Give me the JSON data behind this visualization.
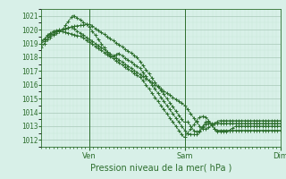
{
  "bg_color": "#d8f0e8",
  "grid_color_minor": "#c8e8d8",
  "grid_color_major": "#a8c8b8",
  "line_color": "#2d6e2d",
  "xlabel": "Pression niveau de la mer( hPa )",
  "ylim": [
    1011.5,
    1021.5
  ],
  "yticks": [
    1012,
    1013,
    1014,
    1015,
    1016,
    1017,
    1018,
    1019,
    1020,
    1021
  ],
  "xtick_labels_pos": [
    48,
    144,
    240
  ],
  "xtick_labels_txt": [
    "Ven",
    "Sam",
    "Dim"
  ],
  "total_points": 241,
  "series": [
    [
      1019.0,
      1019.1,
      1019.2,
      1019.3,
      1019.4,
      1019.5,
      1019.6,
      1019.65,
      1019.7,
      1019.75,
      1019.8,
      1019.85,
      1019.9,
      1019.92,
      1019.94,
      1019.95,
      1019.96,
      1019.97,
      1019.98,
      1019.99,
      1020.0,
      1020.02,
      1020.04,
      1020.06,
      1020.08,
      1020.1,
      1020.12,
      1020.14,
      1020.16,
      1020.18,
      1020.2,
      1020.22,
      1020.24,
      1020.25,
      1020.26,
      1020.27,
      1020.28,
      1020.29,
      1020.3,
      1020.31,
      1020.32,
      1020.33,
      1020.34,
      1020.35,
      1020.36,
      1020.37,
      1020.38,
      1020.39,
      1020.4,
      1020.35,
      1020.3,
      1020.25,
      1020.2,
      1020.15,
      1020.1,
      1020.05,
      1020.0,
      1019.95,
      1019.9,
      1019.85,
      1019.8,
      1019.75,
      1019.7,
      1019.65,
      1019.6,
      1019.55,
      1019.5,
      1019.45,
      1019.4,
      1019.35,
      1019.3,
      1019.25,
      1019.2,
      1019.15,
      1019.1,
      1019.05,
      1019.0,
      1018.95,
      1018.9,
      1018.85,
      1018.8,
      1018.75,
      1018.7,
      1018.65,
      1018.6,
      1018.55,
      1018.5,
      1018.45,
      1018.4,
      1018.35,
      1018.3,
      1018.25,
      1018.2,
      1018.15,
      1018.1,
      1018.05,
      1018.0,
      1017.9,
      1017.8,
      1017.7,
      1017.6,
      1017.5,
      1017.4,
      1017.3,
      1017.2,
      1017.1,
      1017.0,
      1016.9,
      1016.8,
      1016.7,
      1016.6,
      1016.5,
      1016.4,
      1016.3,
      1016.2,
      1016.1,
      1016.0,
      1015.9,
      1015.8,
      1015.7,
      1015.6,
      1015.5,
      1015.4,
      1015.3,
      1015.2,
      1015.1,
      1015.0,
      1014.9,
      1014.8,
      1014.7,
      1014.6,
      1014.5,
      1014.4,
      1014.3,
      1014.2,
      1014.1,
      1014.0,
      1013.9,
      1013.8,
      1013.7,
      1013.6,
      1013.5,
      1013.4,
      1013.3,
      1013.3,
      1013.3,
      1013.3,
      1013.3,
      1013.2,
      1013.1,
      1013.0,
      1012.9,
      1012.8,
      1012.7,
      1012.6,
      1012.6,
      1012.6,
      1012.6,
      1012.6,
      1012.7,
      1012.8,
      1012.9,
      1013.0,
      1013.1,
      1013.2,
      1013.3,
      1013.3,
      1013.3,
      1013.3,
      1013.3,
      1013.2,
      1013.1,
      1013.0,
      1012.9,
      1012.8,
      1012.7,
      1012.6,
      1012.6,
      1012.6,
      1012.6,
      1012.6,
      1012.6,
      1012.6,
      1012.6,
      1012.6,
      1012.6,
      1012.6,
      1012.6,
      1012.65,
      1012.7,
      1012.75,
      1012.8,
      1012.85,
      1012.9,
      1012.95,
      1013.0,
      1013.0,
      1013.0,
      1013.0,
      1013.0,
      1013.0,
      1013.0,
      1013.0,
      1013.0,
      1013.0,
      1013.0,
      1013.0,
      1013.0,
      1013.0,
      1013.0,
      1013.0,
      1013.0,
      1013.0,
      1013.0,
      1013.0,
      1013.0,
      1013.0,
      1013.0,
      1013.0,
      1013.0,
      1013.0,
      1013.0,
      1013.0,
      1013.0,
      1013.0,
      1013.0,
      1013.0,
      1013.0,
      1013.0,
      1013.0,
      1013.0,
      1013.0,
      1013.0,
      1013.0,
      1013.0,
      1013.0,
      1013.0,
      1013.0,
      1013.0,
      1013.0,
      1013.0
    ],
    [
      1018.7,
      1018.8,
      1018.9,
      1019.0,
      1019.1,
      1019.2,
      1019.3,
      1019.4,
      1019.5,
      1019.55,
      1019.6,
      1019.65,
      1019.7,
      1019.75,
      1019.8,
      1019.85,
      1019.9,
      1019.92,
      1019.94,
      1019.96,
      1019.98,
      1020.0,
      1020.1,
      1020.2,
      1020.3,
      1020.4,
      1020.5,
      1020.6,
      1020.7,
      1020.8,
      1020.9,
      1021.0,
      1021.05,
      1021.0,
      1020.95,
      1020.9,
      1020.85,
      1020.8,
      1020.75,
      1020.7,
      1020.65,
      1020.6,
      1020.55,
      1020.5,
      1020.45,
      1020.4,
      1020.35,
      1020.3,
      1020.2,
      1020.1,
      1020.0,
      1019.9,
      1019.8,
      1019.7,
      1019.6,
      1019.5,
      1019.4,
      1019.3,
      1019.2,
      1019.1,
      1019.0,
      1018.9,
      1018.8,
      1018.7,
      1018.6,
      1018.5,
      1018.4,
      1018.3,
      1018.2,
      1018.1,
      1018.05,
      1018.0,
      1018.05,
      1018.1,
      1018.15,
      1018.2,
      1018.25,
      1018.3,
      1018.25,
      1018.2,
      1018.15,
      1018.1,
      1018.05,
      1018.0,
      1017.95,
      1017.9,
      1017.85,
      1017.8,
      1017.75,
      1017.7,
      1017.65,
      1017.6,
      1017.55,
      1017.5,
      1017.45,
      1017.4,
      1017.35,
      1017.3,
      1017.25,
      1017.2,
      1017.1,
      1017.0,
      1016.9,
      1016.8,
      1016.7,
      1016.6,
      1016.5,
      1016.4,
      1016.3,
      1016.2,
      1016.1,
      1016.0,
      1015.9,
      1015.8,
      1015.7,
      1015.6,
      1015.5,
      1015.4,
      1015.3,
      1015.2,
      1015.1,
      1015.0,
      1014.9,
      1014.8,
      1014.7,
      1014.6,
      1014.5,
      1014.4,
      1014.3,
      1014.2,
      1014.1,
      1014.0,
      1013.9,
      1013.8,
      1013.7,
      1013.6,
      1013.5,
      1013.4,
      1013.3,
      1013.2,
      1013.1,
      1013.0,
      1012.9,
      1012.8,
      1012.7,
      1012.6,
      1012.5,
      1012.45,
      1012.4,
      1012.4,
      1012.4,
      1012.4,
      1012.4,
      1012.4,
      1012.4,
      1012.4,
      1012.4,
      1012.4,
      1012.5,
      1012.6,
      1012.7,
      1012.8,
      1012.9,
      1013.0,
      1013.1,
      1013.15,
      1013.2,
      1013.2,
      1013.2,
      1013.2,
      1013.2,
      1013.2,
      1013.2,
      1013.2,
      1013.2,
      1013.2,
      1013.2,
      1013.2,
      1013.2,
      1013.2,
      1013.2,
      1013.2,
      1013.2,
      1013.2,
      1013.2,
      1013.2,
      1013.2,
      1013.2,
      1013.2,
      1013.2,
      1013.2,
      1013.2,
      1013.2,
      1013.2,
      1013.2,
      1013.2,
      1013.2,
      1013.2,
      1013.2,
      1013.2,
      1013.2,
      1013.2,
      1013.2,
      1013.2,
      1013.2,
      1013.2,
      1013.2,
      1013.2,
      1013.2,
      1013.2,
      1013.2,
      1013.2,
      1013.2,
      1013.2,
      1013.2,
      1013.2,
      1013.2,
      1013.2,
      1013.2,
      1013.2,
      1013.2,
      1013.2,
      1013.2,
      1013.2,
      1013.2,
      1013.2,
      1013.2,
      1013.2,
      1013.2,
      1013.2,
      1013.2,
      1013.2,
      1013.2,
      1013.2,
      1013.2,
      1013.2,
      1013.2,
      1013.2,
      1013.2,
      1013.2,
      1013.2
    ],
    [
      1019.0,
      1019.05,
      1019.1,
      1019.15,
      1019.2,
      1019.25,
      1019.3,
      1019.35,
      1019.4,
      1019.45,
      1019.5,
      1019.55,
      1019.6,
      1019.65,
      1019.7,
      1019.75,
      1019.8,
      1019.85,
      1019.9,
      1019.95,
      1020.0,
      1020.02,
      1020.04,
      1020.06,
      1020.08,
      1020.1,
      1020.12,
      1020.14,
      1020.16,
      1020.18,
      1020.2,
      1020.15,
      1020.1,
      1020.05,
      1020.0,
      1019.95,
      1019.9,
      1019.85,
      1019.8,
      1019.75,
      1019.7,
      1019.65,
      1019.6,
      1019.55,
      1019.5,
      1019.45,
      1019.4,
      1019.35,
      1019.3,
      1019.25,
      1019.2,
      1019.15,
      1019.1,
      1019.05,
      1019.0,
      1018.95,
      1018.9,
      1018.85,
      1018.8,
      1018.75,
      1018.7,
      1018.65,
      1018.6,
      1018.55,
      1018.5,
      1018.45,
      1018.4,
      1018.35,
      1018.3,
      1018.25,
      1018.2,
      1018.15,
      1018.1,
      1018.05,
      1018.0,
      1017.95,
      1017.9,
      1017.85,
      1017.8,
      1017.75,
      1017.7,
      1017.65,
      1017.6,
      1017.55,
      1017.5,
      1017.45,
      1017.4,
      1017.35,
      1017.3,
      1017.25,
      1017.2,
      1017.15,
      1017.1,
      1017.05,
      1017.0,
      1016.95,
      1016.9,
      1016.85,
      1016.8,
      1016.75,
      1016.7,
      1016.65,
      1016.6,
      1016.55,
      1016.5,
      1016.45,
      1016.4,
      1016.35,
      1016.3,
      1016.25,
      1016.2,
      1016.15,
      1016.1,
      1016.05,
      1016.0,
      1015.95,
      1015.9,
      1015.85,
      1015.8,
      1015.75,
      1015.7,
      1015.65,
      1015.6,
      1015.55,
      1015.5,
      1015.45,
      1015.4,
      1015.35,
      1015.3,
      1015.25,
      1015.2,
      1015.15,
      1015.1,
      1015.05,
      1015.0,
      1014.95,
      1014.9,
      1014.85,
      1014.8,
      1014.75,
      1014.7,
      1014.65,
      1014.6,
      1014.55,
      1014.5,
      1014.4,
      1014.3,
      1014.2,
      1014.1,
      1014.0,
      1013.9,
      1013.8,
      1013.7,
      1013.6,
      1013.5,
      1013.4,
      1013.3,
      1013.2,
      1013.1,
      1013.0,
      1012.9,
      1012.85,
      1012.8,
      1012.8,
      1012.8,
      1012.8,
      1012.8,
      1012.85,
      1012.9,
      1012.95,
      1013.0,
      1013.05,
      1013.1,
      1013.15,
      1013.2,
      1013.25,
      1013.3,
      1013.35,
      1013.4,
      1013.4,
      1013.4,
      1013.4,
      1013.4,
      1013.4,
      1013.4,
      1013.4,
      1013.4,
      1013.4,
      1013.4,
      1013.4,
      1013.4,
      1013.4,
      1013.4,
      1013.4,
      1013.4,
      1013.4,
      1013.4,
      1013.4,
      1013.4,
      1013.4,
      1013.4,
      1013.4,
      1013.4,
      1013.4,
      1013.4,
      1013.4,
      1013.4,
      1013.4,
      1013.4,
      1013.4,
      1013.4,
      1013.4,
      1013.4,
      1013.4,
      1013.4,
      1013.4,
      1013.4,
      1013.4,
      1013.4,
      1013.4,
      1013.4,
      1013.4,
      1013.4,
      1013.4,
      1013.4,
      1013.4,
      1013.4,
      1013.4,
      1013.4,
      1013.4,
      1013.4,
      1013.4,
      1013.4,
      1013.4,
      1013.4,
      1013.4,
      1013.4,
      1013.4,
      1013.4,
      1013.4,
      1013.4
    ],
    [
      1019.2,
      1019.25,
      1019.3,
      1019.35,
      1019.4,
      1019.45,
      1019.5,
      1019.55,
      1019.6,
      1019.65,
      1019.7,
      1019.75,
      1019.8,
      1019.82,
      1019.84,
      1019.86,
      1019.88,
      1019.9,
      1019.9,
      1019.9,
      1019.9,
      1019.88,
      1019.86,
      1019.84,
      1019.82,
      1019.8,
      1019.78,
      1019.76,
      1019.74,
      1019.72,
      1019.7,
      1019.68,
      1019.66,
      1019.64,
      1019.62,
      1019.6,
      1019.58,
      1019.56,
      1019.54,
      1019.52,
      1019.5,
      1019.45,
      1019.4,
      1019.35,
      1019.3,
      1019.25,
      1019.2,
      1019.15,
      1019.1,
      1019.05,
      1019.0,
      1018.95,
      1018.9,
      1018.85,
      1018.8,
      1018.75,
      1018.7,
      1018.65,
      1018.6,
      1018.55,
      1018.5,
      1018.45,
      1018.4,
      1018.35,
      1018.3,
      1018.25,
      1018.2,
      1018.15,
      1018.1,
      1018.05,
      1018.0,
      1017.95,
      1017.9,
      1017.85,
      1017.8,
      1017.75,
      1017.7,
      1017.65,
      1017.6,
      1017.55,
      1017.5,
      1017.45,
      1017.4,
      1017.35,
      1017.3,
      1017.25,
      1017.2,
      1017.15,
      1017.1,
      1017.05,
      1017.0,
      1016.95,
      1016.9,
      1016.85,
      1016.8,
      1016.75,
      1016.7,
      1016.65,
      1016.6,
      1016.55,
      1016.5,
      1016.4,
      1016.3,
      1016.2,
      1016.1,
      1016.0,
      1015.9,
      1015.8,
      1015.7,
      1015.6,
      1015.5,
      1015.4,
      1015.3,
      1015.2,
      1015.1,
      1015.0,
      1014.9,
      1014.8,
      1014.7,
      1014.6,
      1014.5,
      1014.4,
      1014.3,
      1014.2,
      1014.1,
      1014.0,
      1013.9,
      1013.8,
      1013.7,
      1013.6,
      1013.5,
      1013.4,
      1013.3,
      1013.2,
      1013.1,
      1013.0,
      1012.9,
      1012.8,
      1012.7,
      1012.6,
      1012.5,
      1012.4,
      1012.3,
      1012.2,
      1012.2,
      1012.3,
      1012.4,
      1012.5,
      1012.6,
      1012.7,
      1012.8,
      1012.9,
      1013.0,
      1013.1,
      1013.2,
      1013.3,
      1013.4,
      1013.5,
      1013.6,
      1013.65,
      1013.7,
      1013.7,
      1013.7,
      1013.7,
      1013.7,
      1013.65,
      1013.6,
      1013.5,
      1013.4,
      1013.3,
      1013.2,
      1013.1,
      1013.0,
      1012.9,
      1012.8,
      1012.75,
      1012.7,
      1012.7,
      1012.7,
      1012.7,
      1012.7,
      1012.7,
      1012.7,
      1012.7,
      1012.7,
      1012.7,
      1012.7,
      1012.7,
      1012.7,
      1012.7,
      1012.7,
      1012.7,
      1012.7,
      1012.7,
      1012.7,
      1012.7,
      1012.7,
      1012.7,
      1012.7,
      1012.7,
      1012.7,
      1012.7,
      1012.7,
      1012.7,
      1012.7,
      1012.7,
      1012.7,
      1012.7,
      1012.7,
      1012.7,
      1012.7,
      1012.7,
      1012.7,
      1012.7,
      1012.7,
      1012.7,
      1012.7,
      1012.7,
      1012.7,
      1012.7,
      1012.7,
      1012.7,
      1012.7,
      1012.7,
      1012.7,
      1012.7,
      1012.7,
      1012.7,
      1012.7,
      1012.7,
      1012.7,
      1012.7,
      1012.7,
      1012.7,
      1012.7,
      1012.7,
      1012.7,
      1012.7,
      1012.7,
      1012.7,
      1012.7
    ]
  ]
}
